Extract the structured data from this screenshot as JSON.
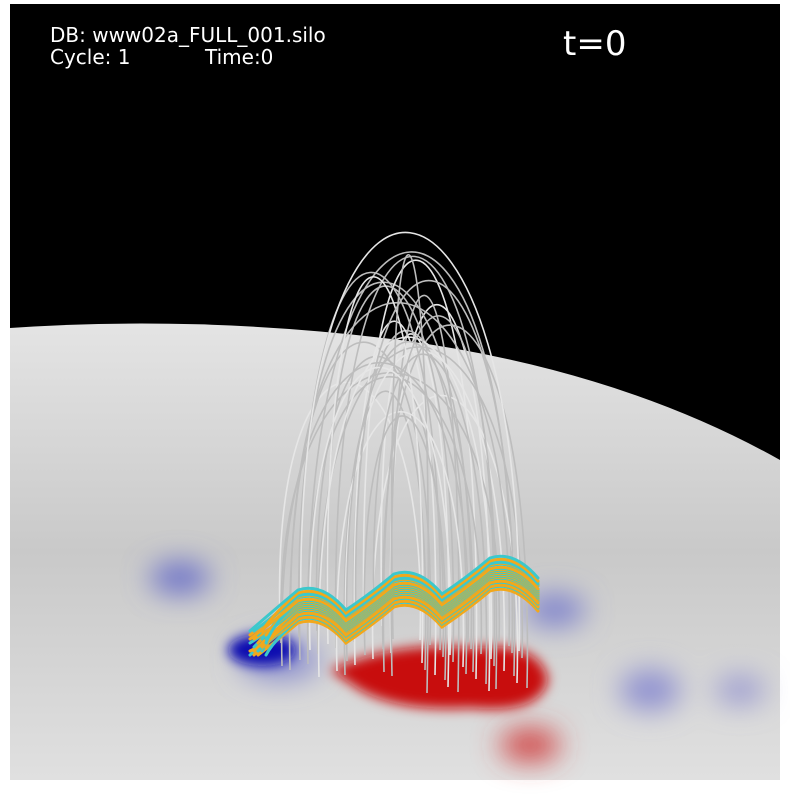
{
  "annotation": {
    "database": "DB: www02a_FULL_001.silo",
    "cycle": "Cycle: 1",
    "time": "Time:0"
  },
  "label": "t=0"
}
